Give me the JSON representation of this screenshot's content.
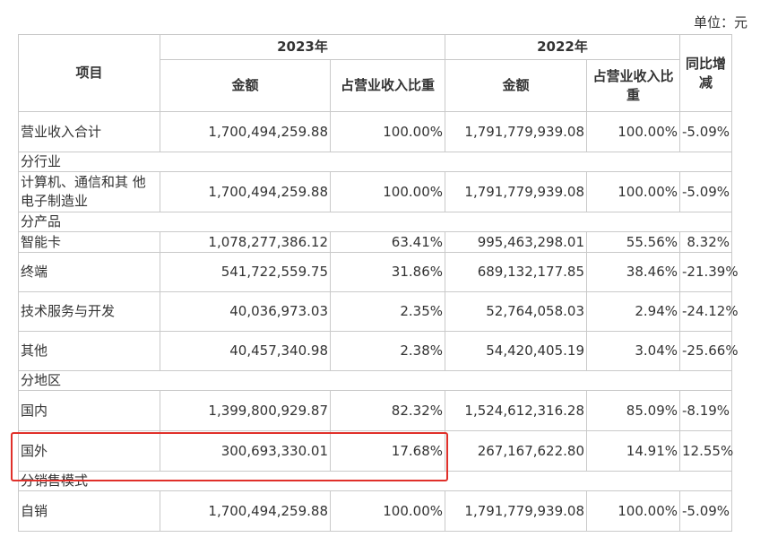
{
  "unit_label": "单位：元",
  "header": {
    "item": "项目",
    "year_2023": "2023年",
    "year_2022": "2022年",
    "amount": "金额",
    "ratio_2023": "占营业收入比重",
    "ratio_2022": "占营业收入比重",
    "yoy": "同比增减"
  },
  "rows": [
    {
      "label": "营业收入合计",
      "a23": "1,700,494,259.88",
      "r23": "100.00%",
      "a22": "1,791,779,939.08",
      "r22": "100.00%",
      "yoy": "-5.09%"
    },
    {
      "section": "分行业"
    },
    {
      "label": "计算机、通信和其 他电子制造业",
      "a23": "1,700,494,259.88",
      "r23": "100.00%",
      "a22": "1,791,779,939.08",
      "r22": "100.00%",
      "yoy": "-5.09%"
    },
    {
      "section": "分产品"
    },
    {
      "label": "智能卡",
      "a23": "1,078,277,386.12",
      "r23": "63.41%",
      "a22": "995,463,298.01",
      "r22": "55.56%",
      "yoy": "8.32%"
    },
    {
      "label": "终端",
      "a23": "541,722,559.75",
      "r23": "31.86%",
      "a22": "689,132,177.85",
      "r22": "38.46%",
      "yoy": "-21.39%"
    },
    {
      "label": "技术服务与开发",
      "a23": "40,036,973.03",
      "r23": "2.35%",
      "a22": "52,764,058.03",
      "r22": "2.94%",
      "yoy": "-24.12%"
    },
    {
      "label": "其他",
      "a23": "40,457,340.98",
      "r23": "2.38%",
      "a22": "54,420,405.19",
      "r22": "3.04%",
      "yoy": "-25.66%"
    },
    {
      "section": "分地区"
    },
    {
      "label": "国内",
      "a23": "1,399,800,929.87",
      "r23": "82.32%",
      "a22": "1,524,612,316.28",
      "r22": "85.09%",
      "yoy": "-8.19%"
    },
    {
      "label": "国外",
      "a23": "300,693,330.01",
      "r23": "17.68%",
      "a22": "267,167,622.80",
      "r22": "14.91%",
      "yoy": "12.55%"
    },
    {
      "section": "分销售模式"
    },
    {
      "label": "自销",
      "a23": "1,700,494,259.88",
      "r23": "100.00%",
      "a22": "1,791,779,939.08",
      "r22": "100.00%",
      "yoy": "-5.09%"
    }
  ]
}
